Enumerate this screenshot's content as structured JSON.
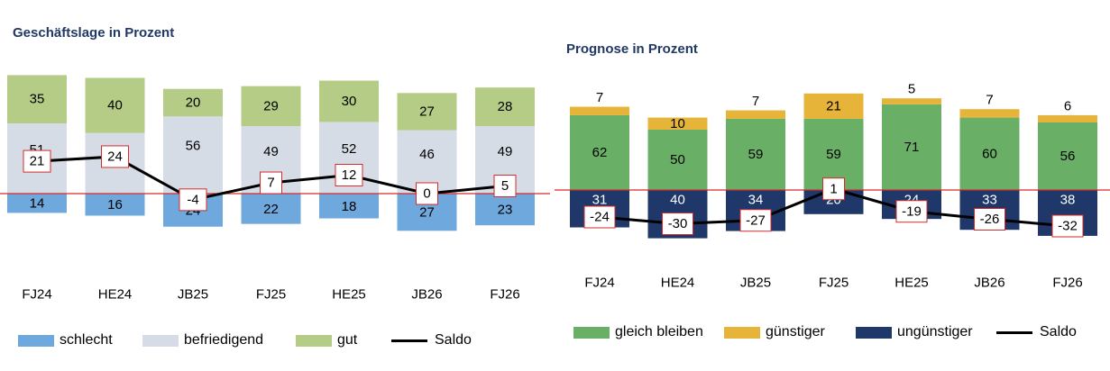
{
  "chart_data": [
    {
      "type": "bar",
      "title": "Geschäftslage in Prozent",
      "categories": [
        "FJ24",
        "HE24",
        "JB25",
        "FJ25",
        "HE25",
        "JB26",
        "FJ26"
      ],
      "series": [
        {
          "name": "schlecht",
          "color": "#6fa8dc",
          "values": [
            14,
            16,
            24,
            22,
            18,
            27,
            23
          ]
        },
        {
          "name": "befriedigend",
          "color": "#d6dce5",
          "values": [
            51,
            44,
            56,
            49,
            52,
            46,
            49
          ]
        },
        {
          "name": "gut",
          "color": "#b4cc86",
          "values": [
            35,
            40,
            20,
            29,
            30,
            27,
            28
          ]
        },
        {
          "name": "Saldo",
          "type": "line",
          "color": "#000000",
          "values": [
            21,
            24,
            -4,
            7,
            12,
            0,
            5
          ]
        }
      ],
      "legend_position": "bottom"
    },
    {
      "type": "bar",
      "title": "Prognose in Prozent",
      "categories": [
        "FJ24",
        "HE24",
        "JB25",
        "FJ25",
        "HE25",
        "JB26",
        "FJ26"
      ],
      "series": [
        {
          "name": "gleich bleiben",
          "color": "#6aaf66",
          "values": [
            62,
            50,
            59,
            59,
            71,
            60,
            56
          ]
        },
        {
          "name": "günstiger",
          "color": "#e7b43a",
          "values": [
            7,
            10,
            7,
            21,
            5,
            7,
            6
          ]
        },
        {
          "name": "ungünstiger",
          "color": "#1f3869",
          "values": [
            31,
            40,
            34,
            20,
            24,
            33,
            38
          ]
        },
        {
          "name": "Saldo",
          "type": "line",
          "color": "#000000",
          "values": [
            -24,
            -30,
            -27,
            1,
            -19,
            -26,
            -32
          ]
        }
      ],
      "legend_position": "bottom"
    }
  ]
}
